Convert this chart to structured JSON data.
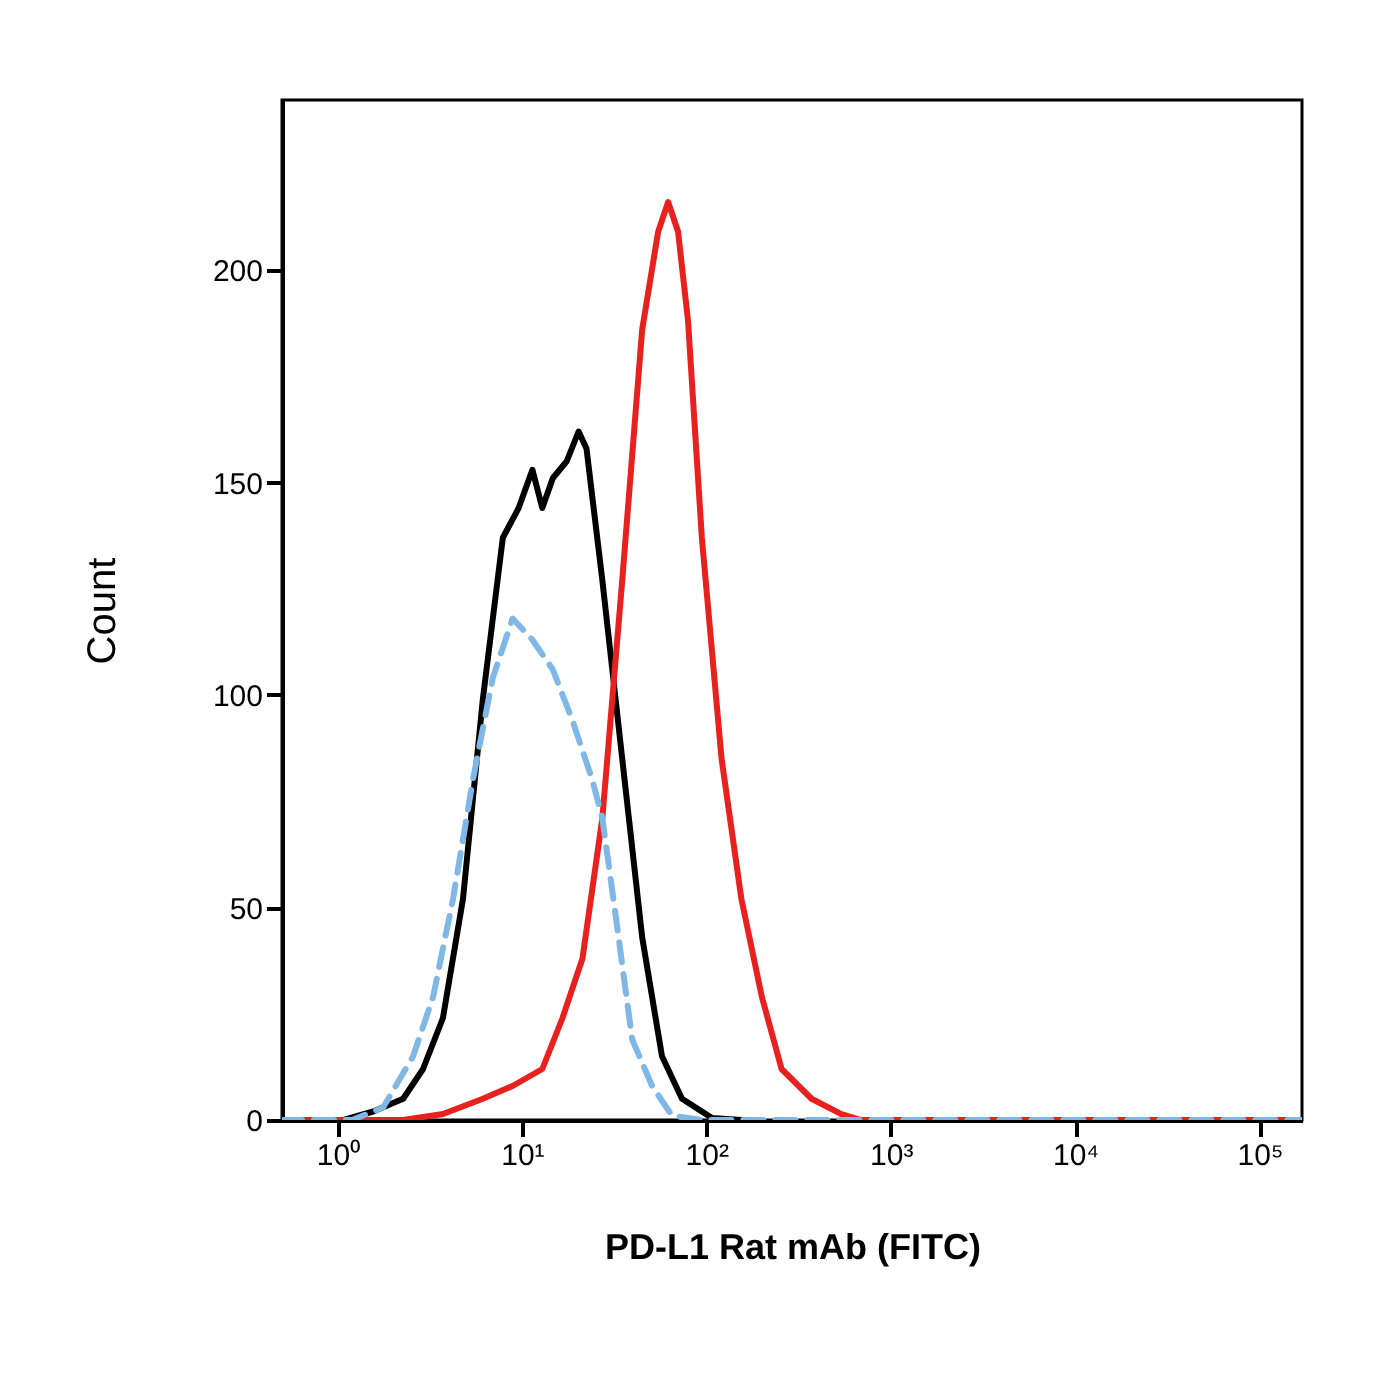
{
  "chart_data": {
    "type": "line",
    "xlabel": "PD-L1 Rat mAb (FITC)",
    "ylabel": "Count",
    "log": "x",
    "grid": false,
    "legend": false,
    "xlim": [
      0.5,
      170000
    ],
    "ylim": [
      0,
      240
    ],
    "xticks": [
      {
        "value": 1,
        "label": "10⁰"
      },
      {
        "value": 10,
        "label": "10¹"
      },
      {
        "value": 100,
        "label": "10²"
      },
      {
        "value": 1000,
        "label": "10³"
      },
      {
        "value": 10000,
        "label": "10⁴"
      },
      {
        "value": 100000,
        "label": "10⁵"
      }
    ],
    "yticks": [
      0,
      50,
      100,
      150,
      200
    ],
    "series": [
      {
        "color": "#000000",
        "line_style": "solid",
        "x": [
          0.5,
          1.08,
          1.56,
          2.27,
          2.91,
          3.73,
          4.79,
          6.14,
          7.88,
          9.6,
          11.4,
          12.9,
          14.7,
          17.5,
          20.3,
          22.4,
          27.3,
          35,
          44.9,
          57.5,
          73.8,
          107,
          155
        ],
        "values": [
          0,
          0,
          2,
          5,
          12,
          24,
          52,
          99,
          137,
          144,
          153,
          144,
          151,
          155,
          162,
          158,
          127,
          85,
          43,
          15,
          5,
          0.5,
          0
        ]
      },
      {
        "color": "#e8201e",
        "line_style": "solid",
        "x": [
          0.5,
          2.27,
          3.73,
          6.14,
          8.9,
          12.9,
          16.6,
          21.3,
          27.3,
          35,
          44.9,
          54.8,
          62.1,
          70.3,
          79.6,
          94.6,
          121,
          155,
          200,
          256,
          372,
          540,
          692,
          170000
        ],
        "values": [
          0,
          0,
          1.4,
          5,
          8,
          12,
          24,
          38,
          71,
          127,
          186,
          209,
          216,
          209,
          188,
          137,
          85,
          52,
          29,
          12,
          5,
          1.4,
          0,
          0
        ]
      },
      {
        "color": "#7fb8e6",
        "line_style": "dashed",
        "x": [
          0.5,
          1.2,
          1.77,
          2.57,
          3.3,
          4.23,
          5.42,
          6.95,
          8.9,
          11.4,
          14.7,
          18.8,
          24.1,
          27.3,
          32.5,
          39.6,
          50.8,
          65.2,
          94.6,
          170000
        ],
        "values": [
          0,
          0,
          3,
          15,
          29,
          52,
          80,
          104,
          118,
          113,
          106,
          94,
          80,
          71,
          47,
          19,
          8,
          1,
          0,
          0
        ]
      }
    ]
  }
}
